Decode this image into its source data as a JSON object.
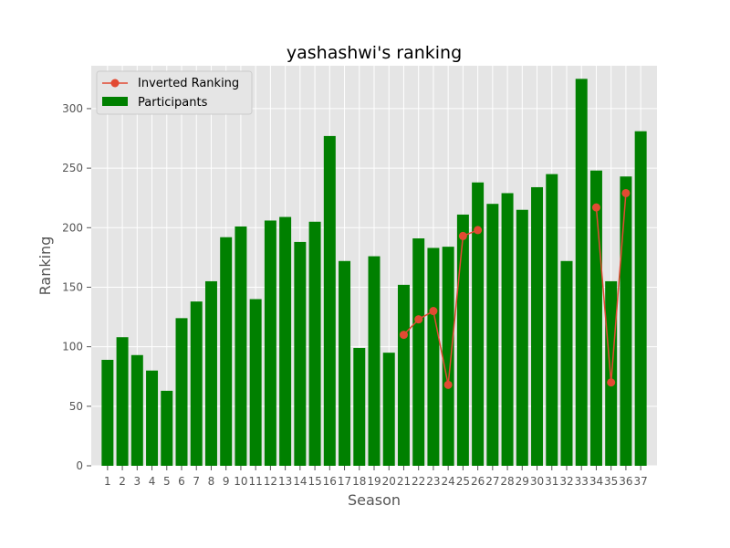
{
  "chart_data": {
    "type": "bar",
    "title": "yashashwi's ranking",
    "xlabel": "Season",
    "ylabel": "Ranking",
    "ylim": [
      0,
      336
    ],
    "yticks": [
      0,
      50,
      100,
      150,
      200,
      250,
      300
    ],
    "grid": true,
    "legend_position": "top-left",
    "categories": [
      "1",
      "2",
      "3",
      "4",
      "5",
      "6",
      "7",
      "8",
      "9",
      "10",
      "11",
      "12",
      "13",
      "14",
      "15",
      "16",
      "17",
      "18",
      "19",
      "20",
      "21",
      "22",
      "23",
      "24",
      "25",
      "26",
      "27",
      "28",
      "29",
      "30",
      "31",
      "32",
      "33",
      "34",
      "35",
      "36",
      "37"
    ],
    "series": [
      {
        "name": "Participants",
        "kind": "bar",
        "color": "#008000",
        "values": [
          89,
          108,
          93,
          80,
          63,
          124,
          138,
          155,
          192,
          201,
          140,
          206,
          209,
          188,
          205,
          277,
          172,
          99,
          176,
          95,
          152,
          191,
          183,
          184,
          211,
          238,
          220,
          229,
          215,
          234,
          245,
          172,
          325,
          248,
          155,
          243,
          281
        ]
      },
      {
        "name": "Inverted Ranking",
        "kind": "line",
        "color": "#E24A33",
        "values": [
          null,
          null,
          null,
          null,
          null,
          null,
          null,
          null,
          null,
          null,
          null,
          null,
          null,
          null,
          null,
          null,
          null,
          null,
          null,
          null,
          110,
          123,
          130,
          68,
          193,
          198,
          null,
          null,
          null,
          null,
          null,
          null,
          null,
          217,
          70,
          229,
          null
        ]
      }
    ]
  }
}
